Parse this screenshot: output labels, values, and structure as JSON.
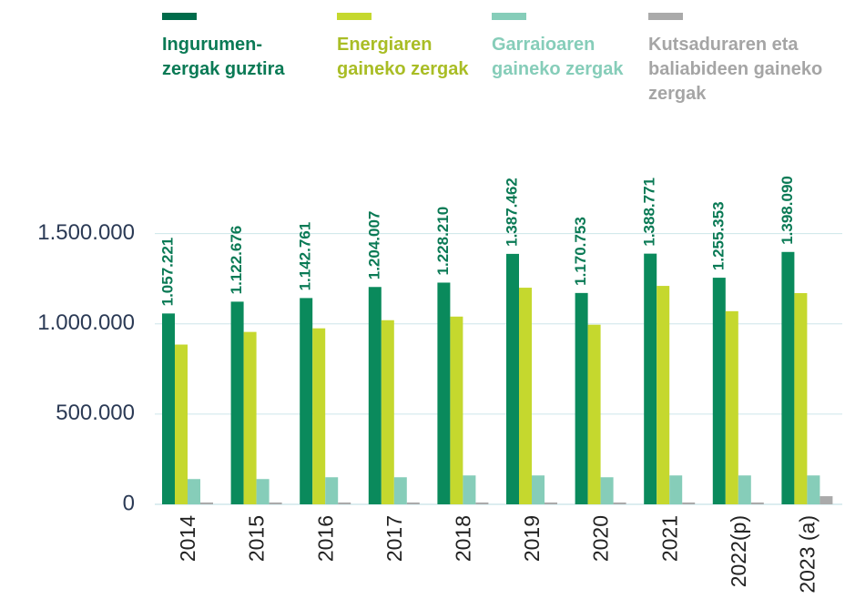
{
  "chart_data": {
    "type": "bar",
    "categories": [
      "2014",
      "2015",
      "2016",
      "2017",
      "2018",
      "2019",
      "2020",
      "2021",
      "2022(p)",
      "2023 (a)"
    ],
    "series": [
      {
        "name": "Ingurumen-zergak guztira",
        "color": "#0a8a5c",
        "values": [
          1057221,
          1122676,
          1142761,
          1204007,
          1228210,
          1387462,
          1170753,
          1388771,
          1255353,
          1398090
        ],
        "value_labels": [
          "1.057.221",
          "1.122.676",
          "1.142.761",
          "1.204.007",
          "1.228.210",
          "1.387.462",
          "1.170.753",
          "1.388.771",
          "1.255.353",
          "1.398.090"
        ]
      },
      {
        "name": "Energiaren gaineko zergak",
        "color": "#c5d82e",
        "values": [
          885000,
          955000,
          975000,
          1020000,
          1040000,
          1200000,
          995000,
          1210000,
          1070000,
          1170000
        ]
      },
      {
        "name": "Garraioaren gaineko zergak",
        "color": "#86cdb9",
        "values": [
          140000,
          140000,
          150000,
          150000,
          160000,
          160000,
          150000,
          160000,
          160000,
          160000
        ]
      },
      {
        "name": "Kutsaduraren eta baliabideen gaineko zergak",
        "color": "#aaaaaa",
        "values": [
          10000,
          10000,
          10000,
          10000,
          10000,
          10000,
          10000,
          10000,
          10000,
          45000
        ]
      }
    ],
    "ylim": [
      0,
      1750000
    ],
    "yticks": [
      0,
      {
        "value": 500000,
        "label": "500.000"
      },
      {
        "value": 1000000,
        "label": "1.000.000"
      },
      {
        "value": 1500000,
        "label": "1.500.000"
      }
    ],
    "grid": true
  }
}
